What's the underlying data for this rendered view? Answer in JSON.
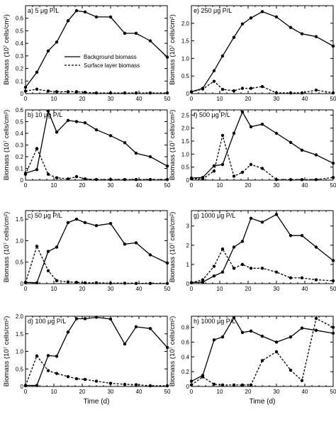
{
  "chart_data": [
    {
      "type": "line",
      "title": "a) 5 μg P/L",
      "ylabel": "Biomass (10⁷ cells/cm²)",
      "xlim": [
        0,
        50
      ],
      "ylim": [
        0,
        0.7
      ],
      "yticks": [
        0,
        0.1,
        0.2,
        0.3,
        0.4,
        0.5,
        0.6
      ],
      "yticklabels": [
        "0",
        "0.1",
        "0.2",
        "0.3",
        "0.4",
        "0.5",
        "0.6"
      ],
      "xticks": [
        0,
        10,
        20,
        30,
        40,
        50
      ],
      "xticklabels": [
        "0",
        "10",
        "20",
        "30",
        "40",
        "50"
      ],
      "series": [
        {
          "name": "Background biomass",
          "style": "solid",
          "x": [
            0,
            4,
            8,
            11,
            15,
            18,
            21,
            25,
            30,
            35,
            39,
            44,
            50
          ],
          "y": [
            0.05,
            0.17,
            0.34,
            0.41,
            0.58,
            0.66,
            0.65,
            0.61,
            0.61,
            0.48,
            0.48,
            0.42,
            0.29
          ]
        },
        {
          "name": "Surface layer biomass",
          "style": "dashed",
          "x": [
            0,
            4,
            8,
            11,
            15,
            18,
            21,
            25,
            30,
            35,
            39,
            44,
            50
          ],
          "y": [
            0.02,
            0.035,
            0.02,
            0.015,
            0.015,
            0.015,
            0.01,
            0.005,
            0.005,
            0.005,
            0.005,
            0.005,
            0.005
          ]
        }
      ]
    },
    {
      "type": "line",
      "title": "b) 10 μg P/L",
      "ylabel": "Biomass (10⁷ cells/cm²)",
      "xlim": [
        0,
        50
      ],
      "ylim": [
        0,
        0.6
      ],
      "yticks": [
        0,
        0.1,
        0.2,
        0.3,
        0.4,
        0.5,
        0.6
      ],
      "yticklabels": [
        "0",
        "0.1",
        "0.2",
        "0.3",
        "0.4",
        "0.5",
        "0.6"
      ],
      "xticks": [
        0,
        10,
        20,
        30,
        40,
        50
      ],
      "xticklabels": [
        "0",
        "10",
        "20",
        "30",
        "40",
        "50"
      ],
      "series": [
        {
          "name": "Background biomass",
          "style": "solid",
          "x": [
            0,
            4,
            8,
            11,
            15,
            18,
            21,
            25,
            30,
            35,
            39,
            44,
            50
          ],
          "y": [
            0.06,
            0.09,
            0.59,
            0.41,
            0.51,
            0.5,
            0.49,
            0.43,
            0.38,
            0.32,
            0.23,
            0.2,
            0.12
          ]
        },
        {
          "name": "Surface layer biomass",
          "style": "dashed",
          "x": [
            0,
            4,
            8,
            11,
            15,
            18,
            21,
            25,
            30,
            35,
            39,
            44,
            50
          ],
          "y": [
            0.05,
            0.27,
            0.05,
            0.02,
            0.01,
            0.03,
            0.01,
            0.005,
            0.005,
            0.005,
            0.005,
            0.005,
            0.005
          ]
        }
      ]
    },
    {
      "type": "line",
      "title": "c) 50 μg P/L",
      "ylabel": "Biomass (10⁷ cells/cm²)",
      "xlim": [
        0,
        50
      ],
      "ylim": [
        0,
        1.7
      ],
      "yticks": [
        0,
        0.5,
        1.0,
        1.5
      ],
      "yticklabels": [
        "0",
        "0.5",
        "1.0",
        "1.5"
      ],
      "xticks": [
        0,
        10,
        20,
        30,
        40,
        50
      ],
      "xticklabels": [
        "0",
        "10",
        "20",
        "30",
        "40",
        "50"
      ],
      "series": [
        {
          "name": "Background biomass",
          "style": "solid",
          "x": [
            0,
            4,
            8,
            11,
            15,
            18,
            21,
            25,
            30,
            35,
            39,
            44,
            50
          ],
          "y": [
            0.03,
            0.02,
            0.75,
            0.85,
            1.42,
            1.5,
            1.42,
            1.35,
            1.4,
            0.92,
            0.95,
            0.67,
            0.48
          ]
        },
        {
          "name": "Surface layer biomass",
          "style": "dashed",
          "x": [
            0,
            4,
            8,
            11,
            15,
            18,
            21,
            25,
            30,
            35,
            39,
            44,
            50
          ],
          "y": [
            0.02,
            0.87,
            0.3,
            0.07,
            0.04,
            0.03,
            0.02,
            0.02,
            0.01,
            0.01,
            0.005,
            0.005,
            0.005
          ]
        }
      ]
    },
    {
      "type": "line",
      "title": "d) 100 μg P/L",
      "ylabel": "Biomass (10⁷ cells/cm²)",
      "xlim": [
        0,
        50
      ],
      "ylim": [
        0,
        2.0
      ],
      "yticks": [
        0,
        0.5,
        1.0,
        1.5,
        2.0
      ],
      "yticklabels": [
        "0",
        "0.5",
        "1.0",
        "1.5",
        "2.0"
      ],
      "xticks": [
        0,
        10,
        20,
        30,
        40,
        50
      ],
      "xticklabels": [
        "0",
        "10",
        "20",
        "30",
        "40",
        "50"
      ],
      "series": [
        {
          "name": "Background biomass",
          "style": "solid",
          "x": [
            0,
            4,
            8,
            11,
            15,
            18,
            21,
            25,
            30,
            35,
            39,
            44,
            50
          ],
          "y": [
            0.03,
            0.03,
            0.88,
            0.86,
            1.55,
            1.93,
            1.93,
            1.97,
            1.92,
            1.21,
            1.7,
            1.65,
            1.11
          ]
        },
        {
          "name": "Surface layer biomass",
          "style": "dashed",
          "x": [
            0,
            4,
            8,
            11,
            15,
            18,
            21,
            25,
            30,
            35,
            39,
            44,
            50
          ],
          "y": [
            0.02,
            0.87,
            0.45,
            0.37,
            0.28,
            0.22,
            0.2,
            0.15,
            0.09,
            0.06,
            0.05,
            0.02,
            0.02
          ]
        }
      ]
    },
    {
      "type": "line",
      "title": "e) 250 μg P/L",
      "ylabel": "Biomass (10⁷ cells/cm²)",
      "xlim": [
        0,
        50
      ],
      "ylim": [
        0,
        2.5
      ],
      "yticks": [
        0,
        0.5,
        1.0,
        1.5,
        2.0
      ],
      "yticklabels": [
        "0",
        "0.5",
        "1.0",
        "1.5",
        "2.0"
      ],
      "xticks": [
        0,
        10,
        20,
        30,
        40,
        50
      ],
      "xticklabels": [
        "0",
        "10",
        "20",
        "30",
        "40",
        "50"
      ],
      "series": [
        {
          "name": "Background biomass",
          "style": "solid",
          "x": [
            0,
            4,
            8,
            11,
            15,
            18,
            21,
            25,
            30,
            35,
            39,
            44,
            50
          ],
          "y": [
            0.05,
            0.15,
            0.65,
            1.07,
            1.6,
            1.98,
            2.15,
            2.33,
            2.18,
            1.88,
            1.7,
            1.62,
            1.35
          ]
        },
        {
          "name": "Surface layer biomass",
          "style": "dashed",
          "x": [
            0,
            4,
            8,
            11,
            15,
            18,
            21,
            25,
            30,
            35,
            39,
            44,
            50
          ],
          "y": [
            0.05,
            0.13,
            0.35,
            0.12,
            0.08,
            0.15,
            0.15,
            0.2,
            0.02,
            0.02,
            0.02,
            0.1,
            0.02
          ]
        }
      ]
    },
    {
      "type": "line",
      "title": "f) 500 μg P/L",
      "ylabel": "Biomass (10⁷ cells/cm²)",
      "xlim": [
        0,
        50
      ],
      "ylim": [
        0,
        2.7
      ],
      "yticks": [
        0,
        0.5,
        1.0,
        1.5,
        2.0,
        2.5
      ],
      "yticklabels": [
        "0",
        "0.5",
        "1.0",
        "1.5",
        "2.0",
        "2.5"
      ],
      "xticks": [
        0,
        10,
        20,
        30,
        40,
        50
      ],
      "xticklabels": [
        "0",
        "10",
        "20",
        "30",
        "40",
        "50"
      ],
      "series": [
        {
          "name": "Background biomass",
          "style": "solid",
          "x": [
            0,
            4,
            8,
            11,
            15,
            18,
            21,
            25,
            30,
            35,
            39,
            44,
            50
          ],
          "y": [
            0.08,
            0.1,
            0.55,
            0.6,
            1.8,
            2.62,
            2.05,
            2.15,
            1.8,
            1.45,
            1.15,
            0.97,
            0.65
          ]
        },
        {
          "name": "Surface layer biomass",
          "style": "dashed",
          "x": [
            0,
            4,
            8,
            11,
            15,
            18,
            21,
            25,
            30,
            35,
            39,
            44,
            50
          ],
          "y": [
            0.05,
            0.05,
            0.35,
            1.72,
            0.15,
            0.3,
            0.6,
            0.45,
            0.02,
            0.02,
            0.02,
            0.02,
            0.1
          ]
        }
      ]
    },
    {
      "type": "line",
      "title": "g) 1000 μg P/L",
      "ylabel": "Biomass (10⁷ cells/cm²)",
      "xlim": [
        0,
        50
      ],
      "ylim": [
        0,
        3.8
      ],
      "yticks": [
        0,
        1,
        2,
        3
      ],
      "yticklabels": [
        "0",
        "1",
        "2",
        "3"
      ],
      "xticks": [
        0,
        10,
        20,
        30,
        40,
        50
      ],
      "xticklabels": [
        "0",
        "10",
        "20",
        "30",
        "40",
        "50"
      ],
      "series": [
        {
          "name": "Background biomass",
          "style": "solid",
          "x": [
            0,
            4,
            8,
            11,
            15,
            18,
            21,
            25,
            30,
            35,
            39,
            44,
            50
          ],
          "y": [
            0.05,
            0.08,
            0.4,
            0.6,
            1.9,
            2.2,
            3.4,
            3.2,
            3.6,
            2.5,
            2.5,
            1.9,
            1.2
          ]
        },
        {
          "name": "Surface layer biomass",
          "style": "dashed",
          "x": [
            0,
            4,
            8,
            11,
            15,
            18,
            21,
            25,
            30,
            35,
            39,
            44,
            50
          ],
          "y": [
            0.05,
            0.2,
            0.9,
            1.8,
            0.8,
            1.0,
            0.8,
            0.8,
            0.6,
            0.3,
            0.3,
            0.2,
            0.15
          ]
        }
      ]
    },
    {
      "type": "line",
      "title": "h) 1000 μg P/L",
      "ylabel": "Biomass (10⁷ cells/cm²)",
      "xlabel": "Time (d)",
      "xlim": [
        0,
        50
      ],
      "ylim": [
        0,
        0.95
      ],
      "yticks": [
        0,
        0.2,
        0.4,
        0.6,
        0.8
      ],
      "yticklabels": [
        "0",
        "0.2",
        "0.4",
        "0.6",
        "0.8"
      ],
      "xticks": [
        0,
        10,
        20,
        30,
        40,
        50
      ],
      "xticklabels": [
        "0",
        "10",
        "20",
        "30",
        "40",
        "50"
      ],
      "series": [
        {
          "name": "Background biomass",
          "style": "solid",
          "x": [
            0,
            4,
            8,
            11,
            15,
            18,
            21,
            25,
            30,
            35,
            39,
            44,
            50
          ],
          "y": [
            0.07,
            0.15,
            0.63,
            0.67,
            0.93,
            0.73,
            0.75,
            0.68,
            0.6,
            0.67,
            0.79,
            0.76,
            0.72
          ]
        },
        {
          "name": "Surface layer biomass",
          "style": "dashed",
          "x": [
            0,
            4,
            8,
            11,
            15,
            18,
            21,
            25,
            30,
            35,
            39,
            44,
            50
          ],
          "y": [
            0.02,
            0.13,
            0.03,
            0.02,
            0.02,
            0.02,
            0.02,
            0.35,
            0.47,
            0.22,
            0.08,
            0.92,
            0.8
          ]
        }
      ]
    }
  ],
  "legend": {
    "background": "Background biomass",
    "surface": "Surface layer biomass"
  },
  "xlabel_left": "Time (d)",
  "xlabel_right": "Time (d)",
  "colors": {
    "line": "#000000",
    "background": "#ffffff"
  }
}
